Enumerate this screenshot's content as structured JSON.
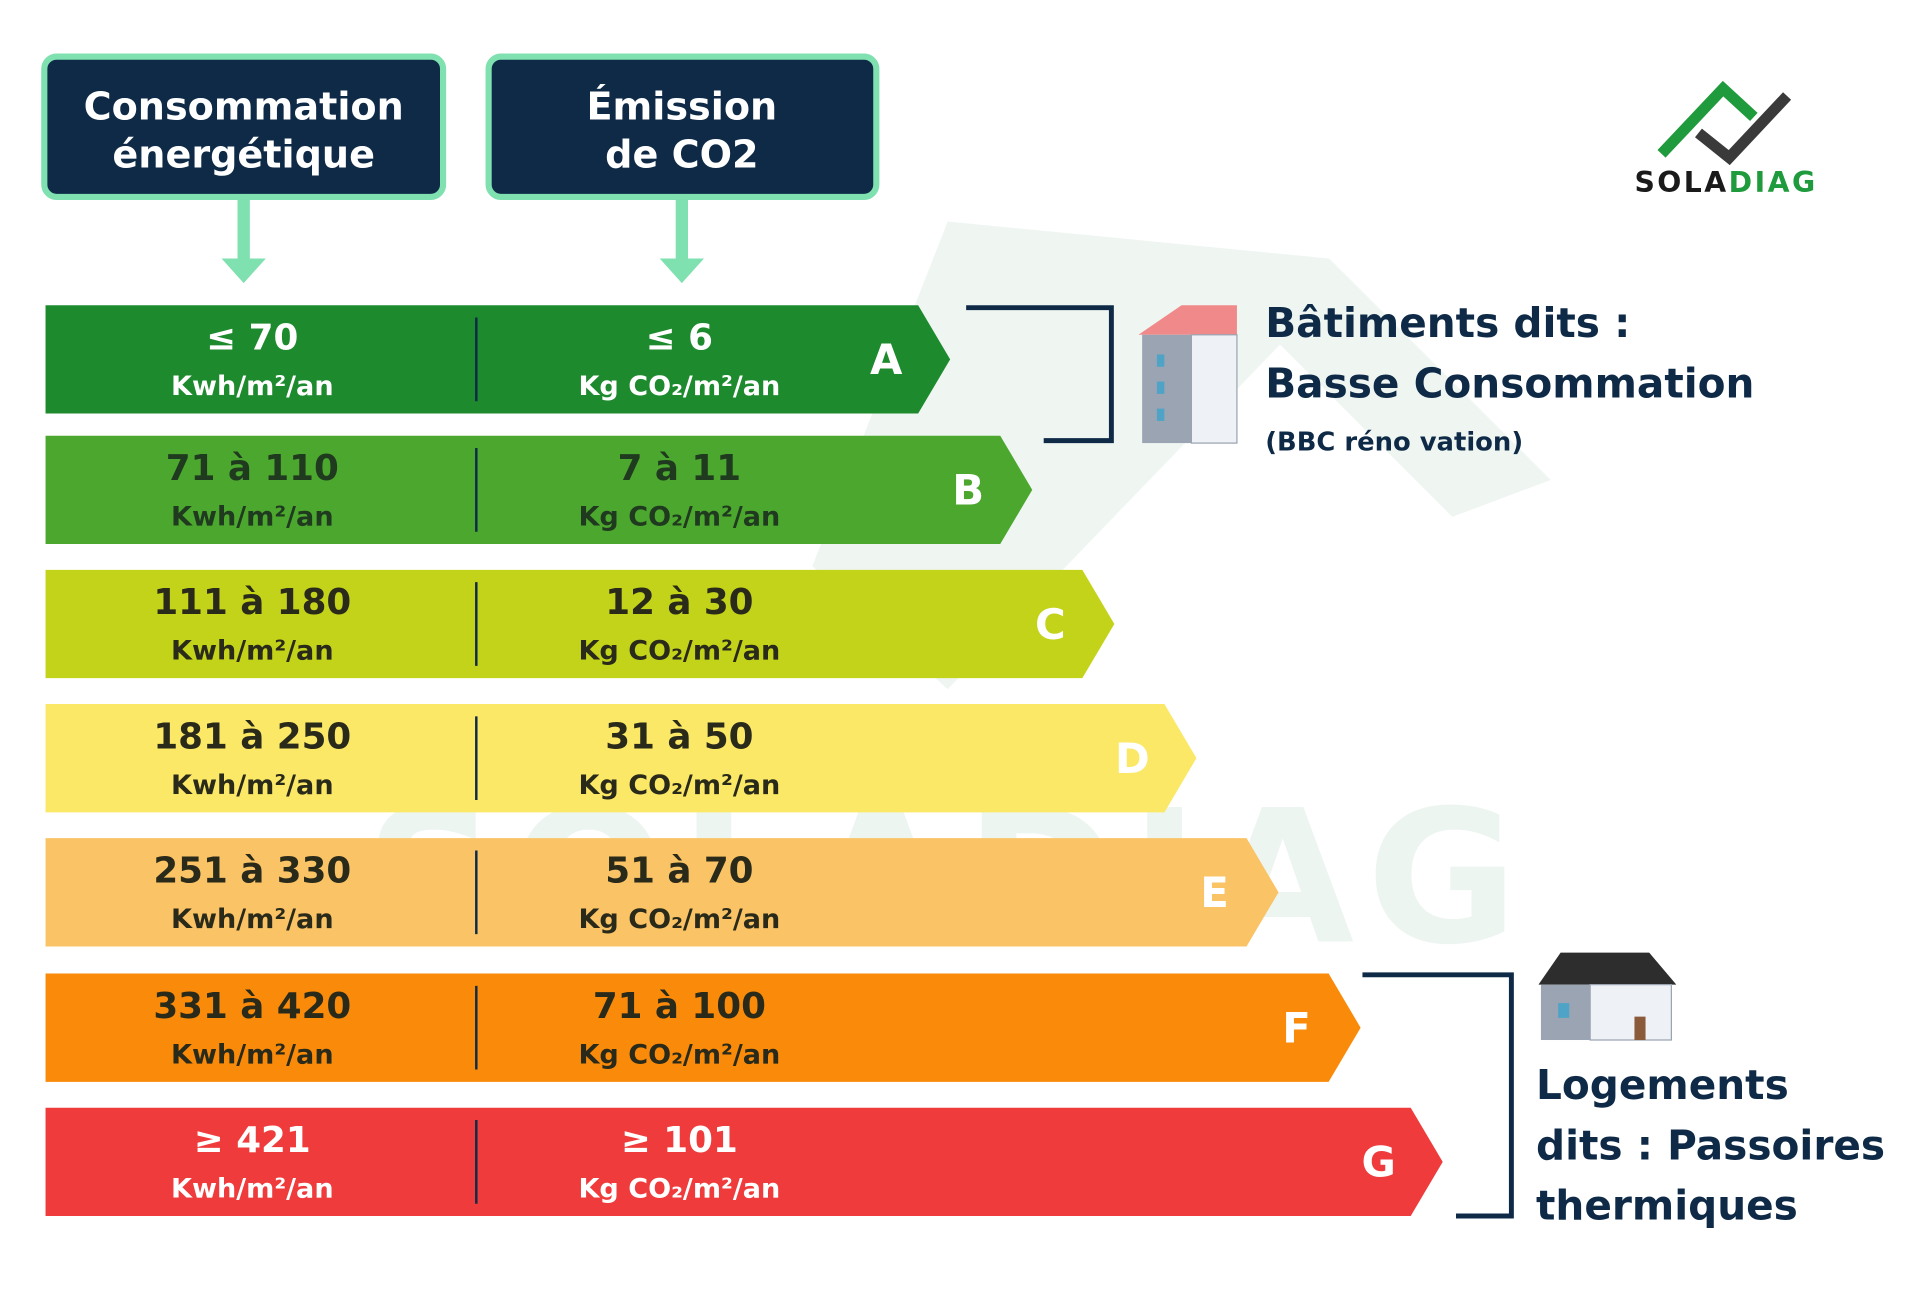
{
  "headers": [
    {
      "lines": [
        "Consommation",
        "énergétique"
      ]
    },
    {
      "lines": [
        "Émission",
        "de CO2"
      ]
    }
  ],
  "rows": [
    {
      "class": "A",
      "energy": "≤ 70",
      "energy_unit": "Kwh/m²/an",
      "co2": "≤ 6",
      "co2_unit": "Kg CO₂/m²/an"
    },
    {
      "class": "B",
      "energy": "71 à 110",
      "energy_unit": "Kwh/m²/an",
      "co2": "7 à 11",
      "co2_unit": "Kg CO₂/m²/an"
    },
    {
      "class": "C",
      "energy": "111 à 180",
      "energy_unit": "Kwh/m²/an",
      "co2": "12 à 30",
      "co2_unit": "Kg CO₂/m²/an"
    },
    {
      "class": "D",
      "energy": "181 à 250",
      "energy_unit": "Kwh/m²/an",
      "co2": "31 à 50",
      "co2_unit": "Kg CO₂/m²/an"
    },
    {
      "class": "E",
      "energy": "251 à 330",
      "energy_unit": "Kwh/m²/an",
      "co2": "51 à 70",
      "co2_unit": "Kg CO₂/m²/an"
    },
    {
      "class": "F",
      "energy": "331 à 420",
      "energy_unit": "Kwh/m²/an",
      "co2": "71 à 100",
      "co2_unit": "Kg CO₂/m²/an"
    },
    {
      "class": "G",
      "energy": "≥ 421",
      "energy_unit": "Kwh/m²/an",
      "co2": "≥ 101",
      "co2_unit": "Kg CO₂/m²/an"
    }
  ],
  "groups": {
    "low": {
      "lines": [
        "Bâtiments dits :",
        "Basse Consommation"
      ],
      "note": "(BBC réno vation)"
    },
    "high": {
      "lines": [
        "Logements",
        "dits : Passoires",
        "thermiques"
      ]
    }
  },
  "logo": {
    "part1": "SOLA",
    "part2": "DIAG"
  },
  "watermark": "SOLADIAG"
}
